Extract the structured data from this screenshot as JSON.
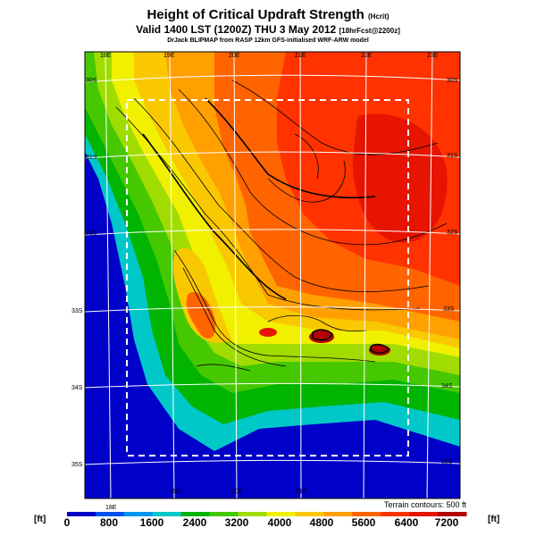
{
  "header": {
    "title": "Height of Critical Updraft Strength",
    "title_suffix": "(Hcrit)",
    "subtitle": "Valid 1400 LST (1200Z) THU 3 May 2012",
    "subtitle_suffix": "[18hrFcst@2200z]",
    "credit": "DrJack BLIPMAP from RASP 12km GFS-initialised WRF-ARW model"
  },
  "map": {
    "lon_labels_top": [
      "18E",
      "19E",
      "20E",
      "21E",
      "22E",
      "23E"
    ],
    "lon_labels_bottom": [
      "18E",
      "19E",
      "20E",
      "21E"
    ],
    "lat_labels_left": [
      "30S",
      "31S",
      "32S",
      "33S",
      "34S",
      "35S"
    ],
    "lat_labels_right": [
      "30S",
      "31S",
      "32S",
      "33S",
      "34S",
      "35S"
    ],
    "terrain_note": "Terrain contours: 500 ft"
  },
  "colorbar": {
    "unit_left": "[ft]",
    "unit_right": "[ft]",
    "labels": [
      "0",
      "800",
      "1600",
      "2400",
      "3200",
      "4000",
      "4800",
      "5600",
      "6400",
      "7200"
    ],
    "colors": [
      "#0000c8",
      "#0050f0",
      "#0096f0",
      "#00c8c8",
      "#00b400",
      "#46c800",
      "#a0dc00",
      "#f0f000",
      "#fac800",
      "#ffa000",
      "#ff6400",
      "#ff3200",
      "#e61400",
      "#b40000"
    ]
  }
}
